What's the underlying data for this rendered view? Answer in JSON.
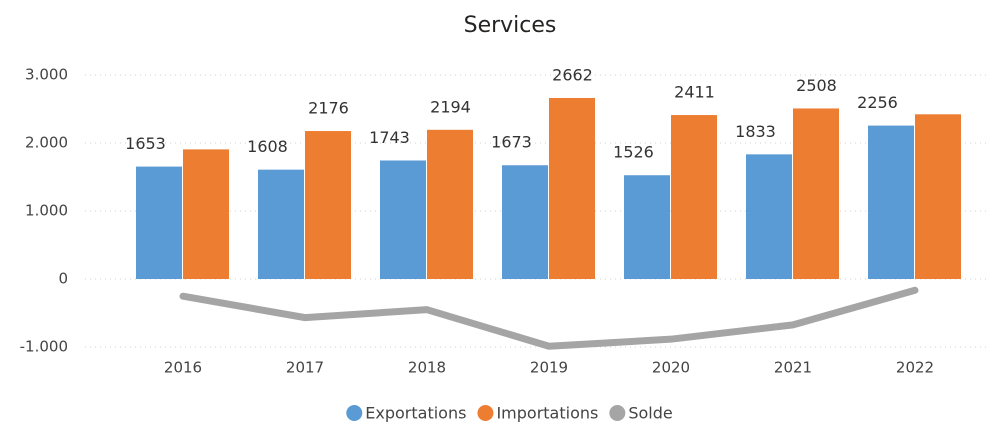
{
  "chart_data": {
    "type": "bar",
    "title": "Services",
    "categories": [
      "2016",
      "2017",
      "2018",
      "2019",
      "2020",
      "2021",
      "2022"
    ],
    "series": [
      {
        "name": "Exportations",
        "type": "bar",
        "color": "#5b9bd5",
        "values": [
          1653,
          1608,
          1743,
          1673,
          1526,
          1833,
          2256
        ],
        "value_labels": [
          "1653",
          "1608",
          "1743",
          "1673",
          "1526",
          "1833",
          "2256"
        ]
      },
      {
        "name": "Importations",
        "type": "bar",
        "color": "#ed7d31",
        "values": [
          1906,
          2176,
          2194,
          2662,
          2411,
          2508,
          2422
        ],
        "value_labels": [
          null,
          "2176",
          "2194",
          "2662",
          "2411",
          "2508",
          null
        ]
      },
      {
        "name": "Solde",
        "type": "line",
        "color": "#a5a5a5",
        "values": [
          -253,
          -568,
          -451,
          -989,
          -885,
          -675,
          -166
        ]
      }
    ],
    "ylim": [
      -1000,
      3000
    ],
    "yticks": [
      {
        "value": 3000,
        "label": "3.000"
      },
      {
        "value": 2000,
        "label": "2.000"
      },
      {
        "value": 1000,
        "label": "1.000"
      },
      0,
      {
        "value": -1000,
        "label": "-1.000"
      }
    ],
    "grid": true,
    "legend": "bottom"
  }
}
